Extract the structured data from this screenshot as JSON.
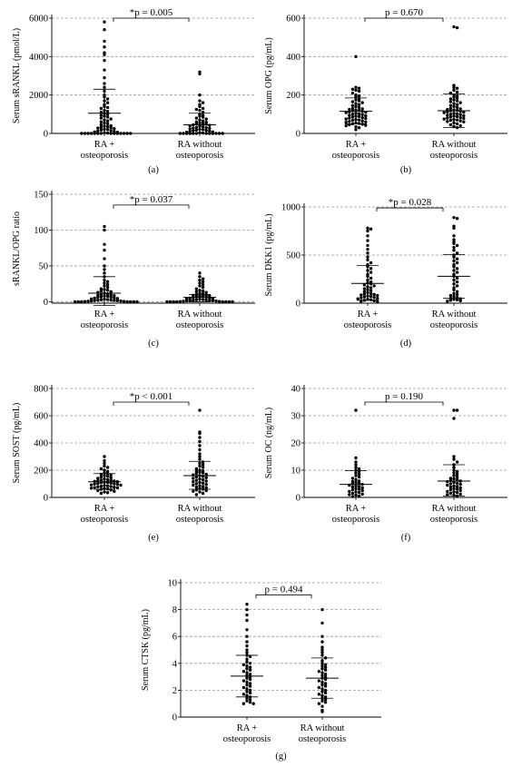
{
  "chart_data": [
    {
      "type": "scatter",
      "panel_label": "(a)",
      "ylabel": "Serum sRANKL (pmol/L)",
      "ylim": [
        0,
        6000
      ],
      "yticks": [
        0,
        2000,
        4000,
        6000
      ],
      "grid": true,
      "categories": [
        "RA + osteoporosis",
        "RA without osteoporosis"
      ],
      "category_lines": [
        [
          "RA +",
          "osteoporosis"
        ],
        [
          "RA without",
          "osteoporosis"
        ]
      ],
      "p_text": "*p = 0.005",
      "bracket_y": 6000,
      "series": [
        {
          "mean": 1050,
          "sd_low": 0,
          "sd_high": 2300,
          "values": [
            5800,
            5400,
            4800,
            4500,
            4200,
            4100,
            3800,
            3300,
            2900,
            2600,
            2400,
            2200,
            2000,
            1900,
            1800,
            1700,
            1600,
            1500,
            1400,
            1350,
            1300,
            1200,
            1150,
            1100,
            1050,
            1000,
            950,
            900,
            850,
            800,
            750,
            700,
            650,
            600,
            550,
            500,
            450,
            400,
            380,
            350,
            320,
            300,
            280,
            250,
            220,
            200,
            180,
            150,
            120,
            100,
            80,
            60,
            40,
            20,
            0,
            0,
            0,
            0,
            0,
            0,
            0,
            0,
            0,
            0,
            0,
            0,
            0,
            0
          ]
        },
        {
          "mean": 450,
          "sd_low": 0,
          "sd_high": 1050,
          "values": [
            3200,
            3100,
            2000,
            1700,
            1600,
            1500,
            1400,
            1300,
            1250,
            1200,
            1100,
            1000,
            950,
            900,
            850,
            800,
            750,
            700,
            650,
            600,
            580,
            550,
            520,
            500,
            480,
            450,
            420,
            400,
            380,
            350,
            320,
            300,
            280,
            260,
            240,
            220,
            200,
            180,
            160,
            140,
            120,
            100,
            80,
            60,
            40,
            20,
            0,
            0,
            0,
            0,
            0,
            0,
            0,
            0,
            0,
            0,
            0,
            0
          ]
        }
      ]
    },
    {
      "type": "scatter",
      "panel_label": "(b)",
      "ylabel": "Serum OPG (pg/mL)",
      "ylim": [
        0,
        600
      ],
      "yticks": [
        0,
        200,
        400,
        600
      ],
      "grid": true,
      "categories": [
        "RA + osteoporosis",
        "RA without osteoporosis"
      ],
      "category_lines": [
        [
          "RA +",
          "osteoporosis"
        ],
        [
          "RA without",
          "osteoporosis"
        ]
      ],
      "p_text": "p = 0.670",
      "bracket_y": 600,
      "series": [
        {
          "mean": 115,
          "sd_low": 50,
          "sd_high": 185,
          "values": [
            400,
            240,
            235,
            230,
            225,
            220,
            210,
            200,
            195,
            190,
            180,
            175,
            170,
            165,
            160,
            155,
            150,
            145,
            140,
            135,
            130,
            128,
            125,
            122,
            120,
            118,
            115,
            112,
            110,
            108,
            105,
            102,
            100,
            98,
            95,
            92,
            90,
            88,
            85,
            82,
            80,
            78,
            75,
            72,
            70,
            68,
            65,
            62,
            60,
            58,
            55,
            52,
            50,
            48,
            45,
            42,
            40,
            35,
            30,
            20
          ]
        },
        {
          "mean": 118,
          "sd_low": 30,
          "sd_high": 205,
          "values": [
            555,
            550,
            250,
            240,
            235,
            225,
            215,
            210,
            200,
            195,
            190,
            185,
            180,
            175,
            170,
            165,
            160,
            155,
            150,
            145,
            140,
            135,
            130,
            128,
            125,
            122,
            120,
            118,
            115,
            112,
            110,
            108,
            105,
            102,
            100,
            98,
            95,
            92,
            90,
            88,
            85,
            82,
            80,
            78,
            75,
            72,
            70,
            68,
            65,
            62,
            60,
            55,
            50,
            45,
            40,
            35,
            30
          ]
        }
      ]
    },
    {
      "type": "scatter",
      "panel_label": "(c)",
      "ylabel": "sRANKL/OPG ratio",
      "ylim": [
        -2,
        150
      ],
      "yticks": [
        0,
        50,
        100,
        150
      ],
      "grid": true,
      "categories": [
        "RA + osteoporosis",
        "RA without osteoporosis"
      ],
      "category_lines": [
        [
          "RA +",
          "osteoporosis"
        ],
        [
          "RA without",
          "osteoporosis"
        ]
      ],
      "p_text": "*p = 0.037",
      "bracket_y": 135,
      "series": [
        {
          "mean": 12,
          "sd_low": -5,
          "sd_high": 35,
          "values": [
            105,
            100,
            80,
            72,
            60,
            50,
            45,
            40,
            35,
            30,
            28,
            26,
            24,
            22,
            20,
            18,
            17,
            16,
            15,
            14,
            13,
            12,
            11,
            10,
            9.5,
            9,
            8.5,
            8,
            7.5,
            7,
            6.5,
            6,
            5.5,
            5,
            4.5,
            4,
            3.5,
            3,
            2.8,
            2.5,
            2.2,
            2,
            1.8,
            1.5,
            1.2,
            1,
            0.8,
            0.5,
            0.3,
            0,
            0,
            0,
            0,
            0,
            0,
            0
          ]
        },
        {
          "mean": 6,
          "sd_low": 0,
          "sd_high": 10,
          "values": [
            40,
            35,
            32,
            30,
            28,
            26,
            24,
            22,
            20,
            18,
            16,
            15,
            14,
            13,
            12,
            11,
            10,
            9.5,
            9,
            8.5,
            8,
            7.5,
            7,
            6.5,
            6,
            5.5,
            5,
            4.5,
            4,
            3.5,
            3,
            2.8,
            2.5,
            2.2,
            2,
            1.8,
            1.5,
            1.2,
            1,
            0.8,
            0.5,
            0.3,
            0,
            0,
            0,
            0,
            0,
            0,
            0,
            0
          ]
        }
      ]
    },
    {
      "type": "scatter",
      "panel_label": "(d)",
      "ylabel": "Serum DKK1 (pg/mL)",
      "ylim": [
        0,
        1000
      ],
      "yticks": [
        0,
        500,
        1000
      ],
      "grid": true,
      "categories": [
        "RA + osteoporosis",
        "RA without osteoporosis"
      ],
      "category_lines": [
        [
          "RA +",
          "osteoporosis"
        ],
        [
          "RA without",
          "osteoporosis"
        ]
      ],
      "p_text": "*p = 0.028",
      "bracket_y": 990,
      "series": [
        {
          "mean": 205,
          "sd_low": 30,
          "sd_high": 390,
          "values": [
            780,
            770,
            750,
            700,
            650,
            600,
            560,
            520,
            480,
            450,
            420,
            400,
            380,
            360,
            340,
            320,
            300,
            280,
            260,
            240,
            220,
            210,
            200,
            190,
            180,
            170,
            160,
            150,
            140,
            130,
            120,
            110,
            100,
            95,
            90,
            85,
            80,
            75,
            70,
            65,
            60,
            55,
            50,
            45,
            40,
            35,
            30,
            25,
            20,
            15
          ]
        },
        {
          "mean": 280,
          "sd_low": 50,
          "sd_high": 505,
          "values": [
            890,
            880,
            800,
            780,
            700,
            660,
            640,
            620,
            600,
            580,
            550,
            520,
            500,
            480,
            460,
            440,
            420,
            400,
            380,
            360,
            340,
            320,
            300,
            280,
            260,
            240,
            220,
            200,
            180,
            160,
            140,
            120,
            100,
            90,
            80,
            70,
            60,
            50,
            45,
            40,
            35,
            30,
            25,
            20
          ]
        }
      ]
    },
    {
      "type": "scatter",
      "panel_label": "(e)",
      "ylabel": "Serum SOST (pg/mL)",
      "ylim": [
        0,
        800
      ],
      "yticks": [
        0,
        200,
        400,
        600,
        800
      ],
      "grid": true,
      "categories": [
        "RA + osteoporosis",
        "RA without osteoporosis"
      ],
      "category_lines": [
        [
          "RA +",
          "osteoporosis"
        ],
        [
          "RA without",
          "osteoporosis"
        ]
      ],
      "p_text": "*p < 0.001",
      "bracket_y": 700,
      "series": [
        {
          "mean": 115,
          "sd_low": 60,
          "sd_high": 175,
          "values": [
            300,
            270,
            250,
            230,
            220,
            210,
            200,
            190,
            180,
            175,
            170,
            165,
            160,
            155,
            150,
            145,
            140,
            135,
            130,
            128,
            125,
            122,
            120,
            118,
            115,
            112,
            110,
            108,
            105,
            102,
            100,
            98,
            95,
            92,
            90,
            88,
            85,
            82,
            80,
            78,
            75,
            72,
            70,
            68,
            65,
            62,
            60,
            55,
            50,
            45,
            40,
            35,
            30
          ]
        },
        {
          "mean": 160,
          "sd_low": 60,
          "sd_high": 265,
          "values": [
            640,
            480,
            470,
            440,
            410,
            380,
            350,
            320,
            300,
            280,
            260,
            250,
            240,
            230,
            220,
            210,
            200,
            195,
            190,
            185,
            180,
            175,
            170,
            165,
            160,
            155,
            150,
            145,
            140,
            135,
            130,
            125,
            120,
            115,
            110,
            105,
            100,
            95,
            90,
            85,
            80,
            75,
            70,
            65,
            60,
            55,
            50,
            45,
            40,
            30,
            20
          ]
        }
      ]
    },
    {
      "type": "scatter",
      "panel_label": "(f)",
      "ylabel": "Serum OC (ng/mL)",
      "ylim": [
        0,
        40
      ],
      "yticks": [
        0,
        10,
        20,
        30,
        40
      ],
      "grid": true,
      "categories": [
        "RA + osteoporosis",
        "RA without osteoporosis"
      ],
      "category_lines": [
        [
          "RA +",
          "osteoporosis"
        ],
        [
          "RA without",
          "osteoporosis"
        ]
      ],
      "p_text": "p = 0.190",
      "bracket_y": 35,
      "series": [
        {
          "mean": 4.8,
          "sd_low": 0,
          "sd_high": 9.8,
          "values": [
            32,
            14.5,
            13,
            12,
            11,
            10.5,
            10,
            9.5,
            9,
            8.5,
            8,
            7.5,
            7,
            6.5,
            6,
            5.8,
            5.5,
            5.2,
            5,
            4.8,
            4.5,
            4.2,
            4,
            3.8,
            3.5,
            3.2,
            3,
            2.8,
            2.5,
            2.2,
            2,
            1.8,
            1.5,
            1.2,
            1,
            0.8,
            0.5,
            0.3
          ]
        },
        {
          "mean": 6,
          "sd_low": 0.5,
          "sd_high": 12,
          "values": [
            32,
            32,
            29,
            15,
            14,
            13,
            12,
            11,
            10,
            9.5,
            9,
            8.5,
            8,
            7.5,
            7,
            6.8,
            6.5,
            6.2,
            6,
            5.8,
            5.5,
            5.2,
            5,
            4.8,
            4.5,
            4.2,
            4,
            3.8,
            3.5,
            3.2,
            3,
            2.8,
            2.5,
            2.2,
            2,
            1.8,
            1.5,
            1.2,
            1,
            0.8,
            0.5
          ]
        }
      ]
    },
    {
      "type": "scatter",
      "panel_label": "(g)",
      "ylabel": "Serum CTSK (pg/mL)",
      "ylim": [
        0,
        10
      ],
      "yticks": [
        0,
        2,
        4,
        6,
        8,
        10
      ],
      "grid": true,
      "categories": [
        "RA + osteoporosis",
        "RA without osteoporosis"
      ],
      "category_lines": [
        [
          "RA +",
          "osteoporosis"
        ],
        [
          "RA without",
          "osteoporosis"
        ]
      ],
      "p_text": "p = 0.494",
      "bracket_y": 9.1,
      "series": [
        {
          "mean": 3.05,
          "sd_low": 1.5,
          "sd_high": 4.6,
          "values": [
            8.4,
            8.0,
            7.6,
            7.2,
            6.5,
            6.0,
            5.6,
            5.3,
            5.0,
            4.8,
            4.6,
            4.5,
            4.3,
            4.1,
            4.0,
            3.9,
            3.8,
            3.7,
            3.6,
            3.5,
            3.4,
            3.3,
            3.2,
            3.1,
            3.0,
            2.9,
            2.8,
            2.7,
            2.6,
            2.5,
            2.4,
            2.3,
            2.2,
            2.1,
            2.0,
            1.9,
            1.8,
            1.7,
            1.6,
            1.5,
            1.4,
            1.3,
            1.2,
            1.1,
            1.0,
            1.0
          ]
        },
        {
          "mean": 2.9,
          "sd_low": 1.4,
          "sd_high": 4.4,
          "values": [
            8.0,
            7.0,
            6.0,
            5.6,
            5.2,
            5.0,
            4.8,
            4.6,
            4.4,
            4.2,
            4.0,
            3.9,
            3.8,
            3.7,
            3.6,
            3.5,
            3.4,
            3.3,
            3.2,
            3.1,
            3.0,
            2.9,
            2.8,
            2.7,
            2.6,
            2.5,
            2.4,
            2.3,
            2.2,
            2.1,
            2.0,
            1.9,
            1.8,
            1.7,
            1.6,
            1.5,
            1.4,
            1.3,
            1.2,
            1.1,
            1.0,
            0.8,
            0.5,
            0.4
          ]
        }
      ]
    }
  ]
}
